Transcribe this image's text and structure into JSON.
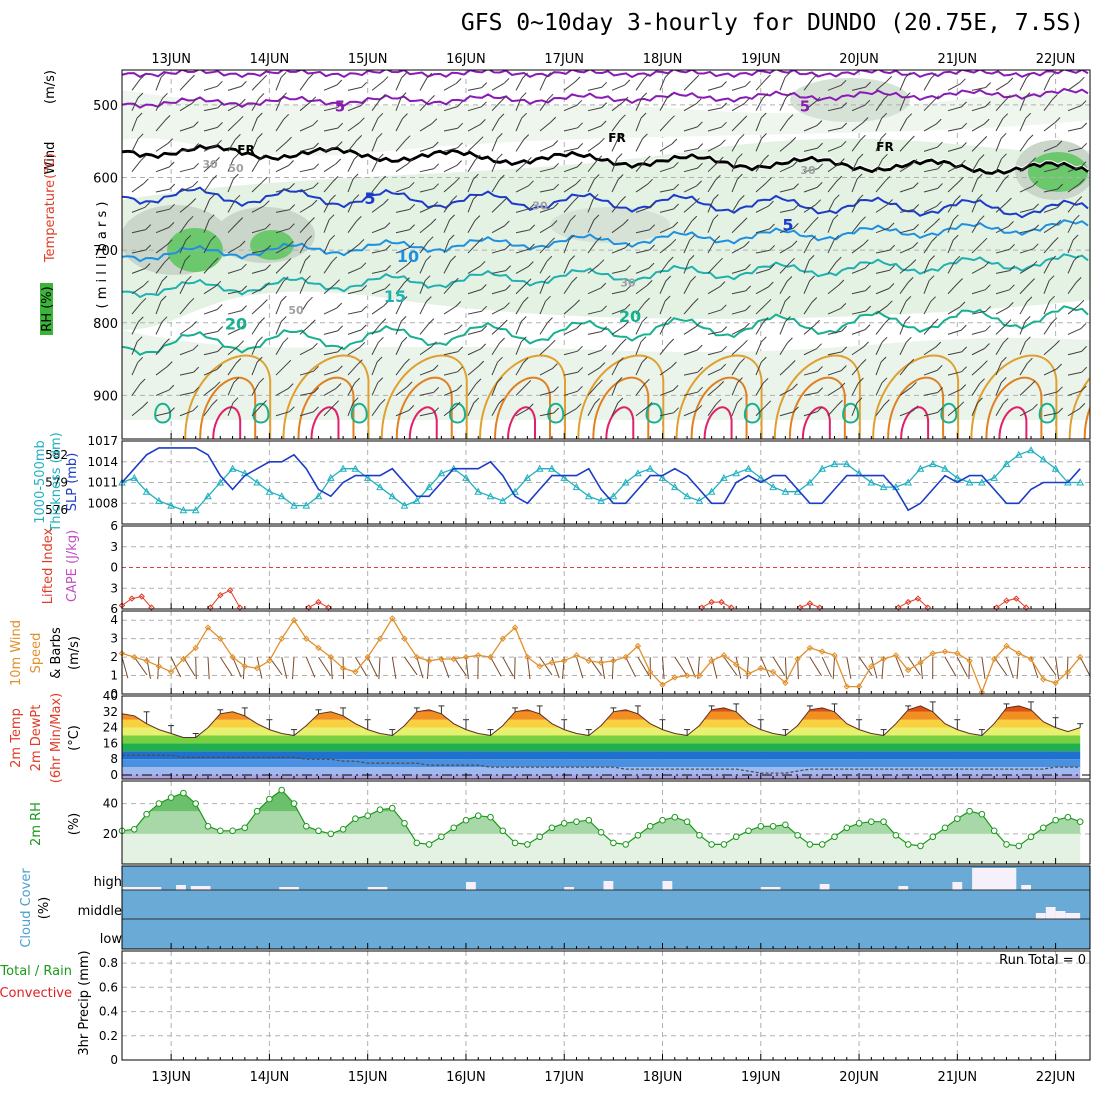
{
  "title": "GFS 0~10day 3-hourly for DUNDO (20.75E, 7.5S)",
  "dates": [
    "13JUN",
    "14JUN",
    "15JUN",
    "16JUN",
    "17JUN",
    "18JUN",
    "19JUN",
    "20JUN",
    "21JUN",
    "22JUN"
  ],
  "colors": {
    "rh": "#2ab42a",
    "temp": "#e03c28",
    "wind": "#000000",
    "thickness": "#20b0c0",
    "slp": "#1c3cc8",
    "lifted_index": "#e03c28",
    "cape": "#c050c0",
    "wind10m": "#e0902c",
    "rh2m": "#1a9a1a",
    "cloud": "#4aa0d0",
    "precip_total": "#1a9a1a",
    "precip_conv": "#e02020"
  },
  "panels": {
    "upper": {
      "ylabel_1": "Wind",
      "ylabel_1u": "(m/s)",
      "ylabel_2": "Temperature",
      "ylabel_2u": "(°C)",
      "ylabel_rh": "RH (%)",
      "ylabel_mb": "( m i l l i b a r s )",
      "yticks": [
        "500",
        "600",
        "700",
        "800",
        "900"
      ],
      "contour_labels": [
        "5",
        "10",
        "15",
        "20",
        "FR",
        "30",
        "50"
      ]
    },
    "slp": {
      "ylabel_a": "1000-500mb",
      "ylabel_b": "Thickness (dm)",
      "ylabel_c": "SLP (mb)",
      "left_ticks": [
        "582",
        "579",
        "576"
      ],
      "right_ticks": [
        "1017",
        "1014",
        "1011",
        "1008"
      ]
    },
    "li": {
      "ylabel_a": "Lifted Index",
      "ylabel_b": "CAPE (J/kg)",
      "yticks": [
        "-6",
        "-3",
        "0",
        "3",
        "6"
      ]
    },
    "wind10": {
      "ylabel_a": "10m Wind",
      "ylabel_b": "Speed",
      "ylabel_c": "& Barbs",
      "ylabel_u": "(m/s)",
      "yticks": [
        "4",
        "3",
        "2",
        "1",
        "0"
      ]
    },
    "temp2m": {
      "ylabel_a": "2m Temp",
      "ylabel_b": "2m DewPt",
      "ylabel_c": "(6hr Min/Max)",
      "ylabel_u": "(°C)",
      "yticks": [
        "40",
        "32",
        "24",
        "16",
        "8",
        "0"
      ]
    },
    "rh2m": {
      "ylabel": "2m RH",
      "ylabel_u": "(%)",
      "yticks": [
        "40",
        "20"
      ]
    },
    "cloud": {
      "ylabel": "Cloud Cover",
      "ylabel_u": "(%)",
      "levels": [
        "high",
        "middle",
        "low"
      ]
    },
    "precip": {
      "ylabel_a": "Total / Rain",
      "ylabel_b": "Convective",
      "ylabel_c": "3hr Precip (mm)",
      "yticks": [
        "0.8",
        "0.6",
        "0.4",
        "0.2",
        "0"
      ],
      "run_total": "Run Total = 0"
    }
  },
  "chart_data": [
    {
      "type": "line",
      "name": "SLP / thickness",
      "x": [
        "12.5",
        "12.625",
        "12.75",
        "12.875",
        "13.0",
        "13.125",
        "13.25",
        "13.375",
        "13.5",
        "13.625",
        "13.75",
        "13.875",
        "14.0",
        "14.125",
        "14.25",
        "14.375",
        "14.5",
        "14.625",
        "14.75",
        "14.875",
        "15.0",
        "15.125",
        "15.25",
        "15.375",
        "15.5",
        "15.625",
        "15.75",
        "15.875",
        "16.0",
        "16.125",
        "16.25",
        "16.375",
        "16.5",
        "16.625",
        "16.75",
        "16.875",
        "17.0",
        "17.125",
        "17.25",
        "17.375",
        "17.5",
        "17.625",
        "17.75",
        "17.875",
        "18.0",
        "18.125",
        "18.25",
        "18.375",
        "18.5",
        "18.625",
        "18.75",
        "18.875",
        "19.0",
        "19.125",
        "19.25",
        "19.375",
        "19.5",
        "19.625",
        "19.75",
        "19.875",
        "20.0",
        "20.125",
        "20.25",
        "20.375",
        "20.5",
        "20.625",
        "20.75",
        "20.875",
        "21.0",
        "21.125",
        "21.25",
        "21.375",
        "21.5",
        "21.625",
        "21.75",
        "21.875",
        "22.0",
        "22.125",
        "22.25"
      ],
      "series": [
        {
          "name": "SLP (mb)",
          "axis": "right",
          "values": [
            1011,
            1013,
            1015,
            1016,
            1016,
            1016,
            1016,
            1015,
            1012,
            1010,
            1012,
            1013,
            1014,
            1014,
            1015,
            1013,
            1010,
            1009,
            1011,
            1012,
            1012,
            1012,
            1013,
            1011,
            1009,
            1009,
            1011,
            1013,
            1013,
            1013,
            1014,
            1012,
            1009,
            1008,
            1010,
            1012,
            1012,
            1012,
            1013,
            1010,
            1008,
            1008,
            1010,
            1012,
            1012,
            1013,
            1012,
            1010,
            1008,
            1008,
            1011,
            1012,
            1011,
            1012,
            1012,
            1010,
            1008,
            1008,
            1010,
            1012,
            1012,
            1012,
            1012,
            1010,
            1007,
            1008,
            1010,
            1012,
            1011,
            1012,
            1012,
            1010,
            1008,
            1008,
            1010,
            1011,
            1011,
            1011,
            1013
          ]
        },
        {
          "name": "1000-500mb Thickness (dm)",
          "axis": "left",
          "values": [
            579.0,
            579.5,
            578.0,
            577.0,
            576.5,
            576.0,
            576.0,
            577.5,
            579.0,
            580.5,
            580.0,
            579.0,
            578.0,
            577.5,
            576.5,
            576.5,
            577.5,
            579.5,
            580.5,
            580.5,
            579.5,
            578.5,
            577.5,
            576.5,
            577.0,
            578.5,
            580.0,
            580.5,
            579.5,
            578.0,
            577.5,
            577.0,
            578.0,
            579.5,
            580.5,
            580.5,
            579.5,
            578.5,
            577.5,
            577.0,
            577.5,
            579.0,
            580.0,
            580.5,
            579.5,
            578.5,
            577.5,
            577.0,
            578.0,
            579.5,
            580.0,
            580.5,
            579.5,
            578.5,
            578.0,
            578.0,
            579.0,
            580.5,
            581.0,
            581.0,
            580.0,
            579.0,
            578.5,
            578.5,
            579.0,
            580.5,
            581.0,
            580.5,
            579.5,
            579.0,
            579.0,
            579.5,
            581.0,
            582.0,
            582.5,
            581.5,
            580.5,
            579.0,
            579.0
          ]
        }
      ],
      "ylim_right": [
        1005,
        1017
      ],
      "ylim_left": [
        574.5,
        583.5
      ]
    },
    {
      "type": "line",
      "name": "Lifted Index / CAPE",
      "x": [
        "12.5",
        "12.6",
        "12.7",
        "12.8",
        "13.4",
        "13.5",
        "13.6",
        "13.7",
        "14.4",
        "14.5",
        "14.6",
        "18.4",
        "18.5",
        "18.6",
        "18.7",
        "19.4",
        "19.5",
        "19.6",
        "20.4",
        "20.5",
        "20.6",
        "20.7",
        "21.4",
        "21.5",
        "21.6",
        "21.7"
      ],
      "series": [
        {
          "name": "Lifted Index",
          "values": [
            5.5,
            4.5,
            4.2,
            5.8,
            5.8,
            4.0,
            3.3,
            5.8,
            5.8,
            5.0,
            5.8,
            5.8,
            5.0,
            5.0,
            5.8,
            5.8,
            5.2,
            5.8,
            5.8,
            5.0,
            4.5,
            5.8,
            5.8,
            4.8,
            4.5,
            5.8
          ]
        }
      ],
      "ylim": [
        6,
        -6
      ]
    },
    {
      "type": "line",
      "name": "10m Wind Speed",
      "x": [
        "12.5",
        "12.625",
        "12.75",
        "12.875",
        "13.0",
        "13.125",
        "13.25",
        "13.375",
        "13.5",
        "13.625",
        "13.75",
        "13.875",
        "14.0",
        "14.125",
        "14.25",
        "14.375",
        "14.5",
        "14.625",
        "14.75",
        "14.875",
        "15.0",
        "15.125",
        "15.25",
        "15.375",
        "15.5",
        "15.625",
        "15.75",
        "15.875",
        "16.0",
        "16.125",
        "16.25",
        "16.375",
        "16.5",
        "16.625",
        "16.75",
        "16.875",
        "17.0",
        "17.125",
        "17.25",
        "17.375",
        "17.5",
        "17.625",
        "17.75",
        "17.875",
        "18.0",
        "18.125",
        "18.25",
        "18.375",
        "18.5",
        "18.625",
        "18.75",
        "18.875",
        "19.0",
        "19.125",
        "19.25",
        "19.375",
        "19.5",
        "19.625",
        "19.75",
        "19.875",
        "20.0",
        "20.125",
        "20.25",
        "20.375",
        "20.5",
        "20.625",
        "20.75",
        "20.875",
        "21.0",
        "21.125",
        "21.25",
        "21.375",
        "21.5",
        "21.625",
        "21.75",
        "21.875",
        "22.0",
        "22.125",
        "22.25"
      ],
      "series": [
        {
          "name": "Speed (m/s)",
          "values": [
            2.2,
            2.0,
            1.8,
            1.5,
            1.2,
            1.9,
            2.5,
            3.6,
            3.0,
            2.0,
            1.5,
            1.4,
            1.8,
            3.0,
            4.0,
            3.0,
            2.5,
            2.0,
            1.4,
            1.2,
            2.0,
            3.0,
            4.1,
            3.0,
            2.0,
            1.8,
            1.9,
            1.9,
            2.0,
            2.1,
            2.0,
            3.0,
            3.6,
            2.0,
            1.5,
            1.7,
            1.8,
            2.1,
            1.8,
            1.7,
            1.8,
            2.0,
            2.6,
            1.2,
            0.5,
            0.9,
            1.0,
            1.0,
            1.8,
            2.1,
            1.6,
            1.1,
            1.4,
            1.2,
            0.6,
            1.9,
            2.5,
            2.3,
            2.1,
            0.4,
            0.4,
            1.5,
            1.9,
            2.1,
            1.3,
            1.7,
            2.2,
            2.3,
            2.2,
            1.8,
            0.1,
            1.9,
            2.6,
            2.2,
            1.9,
            0.8,
            0.6,
            1.2,
            2.0
          ]
        }
      ],
      "ylim": [
        0,
        4.5
      ]
    },
    {
      "type": "area",
      "name": "2m Temp / DewPt",
      "x": [
        "12.5",
        "12.625",
        "12.75",
        "12.875",
        "13.0",
        "13.125",
        "13.25",
        "13.375",
        "13.5",
        "13.625",
        "13.75",
        "13.875",
        "14.0",
        "14.125",
        "14.25",
        "14.375",
        "14.5",
        "14.625",
        "14.75",
        "14.875",
        "15.0",
        "15.125",
        "15.25",
        "15.375",
        "15.5",
        "15.625",
        "15.75",
        "15.875",
        "16.0",
        "16.125",
        "16.25",
        "16.375",
        "16.5",
        "16.625",
        "16.75",
        "16.875",
        "17.0",
        "17.125",
        "17.25",
        "17.375",
        "17.5",
        "17.625",
        "17.75",
        "17.875",
        "18.0",
        "18.125",
        "18.25",
        "18.375",
        "18.5",
        "18.625",
        "18.75",
        "18.875",
        "19.0",
        "19.125",
        "19.25",
        "19.375",
        "19.5",
        "19.625",
        "19.75",
        "19.875",
        "20.0",
        "20.125",
        "20.25",
        "20.375",
        "20.5",
        "20.625",
        "20.75",
        "20.875",
        "21.0",
        "21.125",
        "21.25",
        "21.375",
        "21.5",
        "21.625",
        "21.75",
        "21.875",
        "22.0",
        "22.125",
        "22.25"
      ],
      "series": [
        {
          "name": "2m Temp (°C)",
          "values": [
            31,
            30,
            26,
            23,
            21,
            19,
            19,
            24,
            31,
            32,
            30,
            26,
            23,
            21,
            20,
            25,
            31,
            32,
            30,
            26,
            23,
            21,
            20,
            25,
            32,
            33,
            31,
            26,
            23,
            21,
            20,
            25,
            32,
            33,
            31,
            26,
            23,
            21,
            20,
            25,
            32,
            33,
            31,
            26,
            23,
            21,
            20,
            25,
            33,
            34,
            32,
            26,
            23,
            21,
            20,
            25,
            33,
            34,
            32,
            26,
            23,
            21,
            20,
            26,
            33,
            35,
            32,
            26,
            23,
            21,
            20,
            26,
            34,
            35,
            33,
            27,
            24,
            22,
            24
          ]
        },
        {
          "name": "2m DewPt (°C)",
          "values": [
            10,
            10,
            10,
            10,
            10,
            9,
            9,
            9,
            9,
            9,
            9,
            9,
            9,
            9,
            9,
            8,
            8,
            8,
            7,
            7,
            6,
            6,
            6,
            6,
            6,
            5,
            5,
            5,
            5,
            5,
            4,
            4,
            4,
            4,
            4,
            4,
            4,
            4,
            4,
            4,
            4,
            3,
            3,
            3,
            3,
            3,
            3,
            3,
            3,
            3,
            3,
            2,
            1,
            1,
            1,
            2,
            3,
            3,
            3,
            3,
            3,
            3,
            3,
            3,
            3,
            3,
            3,
            3,
            3,
            3,
            3,
            3,
            3,
            3,
            3,
            3,
            4,
            4,
            4
          ]
        }
      ],
      "ylim": [
        -2,
        40
      ]
    },
    {
      "type": "area",
      "name": "2m RH",
      "x": [
        "12.5",
        "12.625",
        "12.75",
        "12.875",
        "13.0",
        "13.125",
        "13.25",
        "13.375",
        "13.5",
        "13.625",
        "13.75",
        "13.875",
        "14.0",
        "14.125",
        "14.25",
        "14.375",
        "14.5",
        "14.625",
        "14.75",
        "14.875",
        "15.0",
        "15.125",
        "15.25",
        "15.375",
        "15.5",
        "15.625",
        "15.75",
        "15.875",
        "16.0",
        "16.125",
        "16.25",
        "16.375",
        "16.5",
        "16.625",
        "16.75",
        "16.875",
        "17.0",
        "17.125",
        "17.25",
        "17.375",
        "17.5",
        "17.625",
        "17.75",
        "17.875",
        "18.0",
        "18.125",
        "18.25",
        "18.375",
        "18.5",
        "18.625",
        "18.75",
        "18.875",
        "19.0",
        "19.125",
        "19.25",
        "19.375",
        "19.5",
        "19.625",
        "19.75",
        "19.875",
        "20.0",
        "20.125",
        "20.25",
        "20.375",
        "20.5",
        "20.625",
        "20.75",
        "20.875",
        "21.0",
        "21.125",
        "21.25",
        "21.375",
        "21.5",
        "21.625",
        "21.75",
        "21.875",
        "22.0",
        "22.125",
        "22.25"
      ],
      "series": [
        {
          "name": "2m RH (%)",
          "values": [
            22,
            23,
            33,
            40,
            44,
            47,
            40,
            25,
            22,
            22,
            24,
            35,
            43,
            49,
            40,
            25,
            22,
            20,
            23,
            30,
            32,
            36,
            37,
            27,
            14,
            13,
            18,
            24,
            29,
            32,
            31,
            22,
            14,
            13,
            18,
            24,
            27,
            28,
            29,
            21,
            14,
            13,
            19,
            25,
            29,
            31,
            28,
            19,
            13,
            13,
            18,
            22,
            25,
            25,
            26,
            19,
            13,
            13,
            18,
            24,
            27,
            28,
            28,
            19,
            13,
            12,
            18,
            24,
            30,
            35,
            33,
            22,
            13,
            12,
            18,
            24,
            29,
            31,
            28
          ]
        }
      ],
      "ylim": [
        0,
        55
      ]
    },
    {
      "type": "bar",
      "name": "Cloud Cover",
      "categories": [
        "high",
        "middle",
        "low"
      ],
      "values": [
        0,
        0,
        0
      ],
      "note_free": false
    },
    {
      "type": "bar",
      "name": "3hr Precip",
      "categories": [],
      "values": [],
      "ylim": [
        0,
        0.9
      ]
    }
  ]
}
